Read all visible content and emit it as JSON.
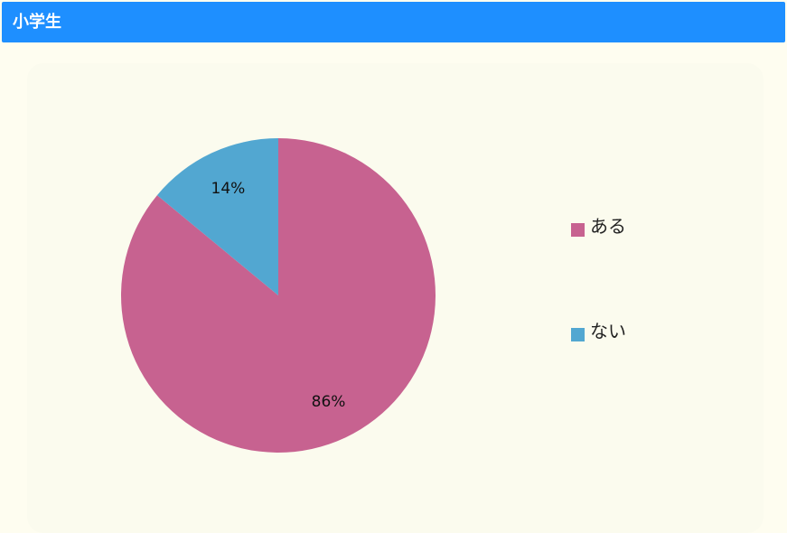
{
  "header": {
    "title": "小学生"
  },
  "chart_data": {
    "type": "pie",
    "categories": [
      "ある",
      "ない"
    ],
    "values": [
      86,
      14
    ],
    "value_labels": [
      "86%",
      "14%"
    ],
    "colors": [
      "#c76290",
      "#52a7d1"
    ]
  }
}
